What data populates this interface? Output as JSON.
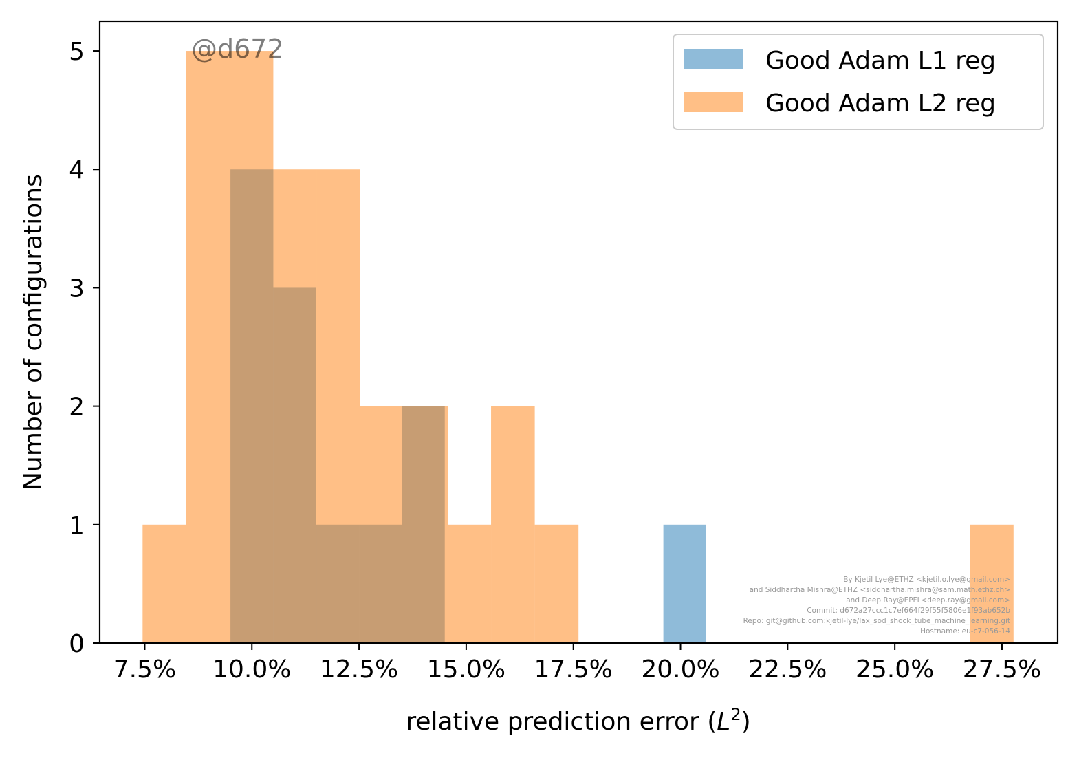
{
  "chart_data": {
    "type": "bar",
    "chart_kind": "overlapping histograms",
    "xlabel": "relative prediction error",
    "xlabel_math": "L",
    "xlabel_math_sup": "2",
    "ylabel": "Number of configurations",
    "xlim": [
      6.45,
      28.8
    ],
    "ylim": [
      0,
      5.25
    ],
    "x_ticks": [
      7.5,
      10.0,
      12.5,
      15.0,
      17.5,
      20.0,
      22.5,
      25.0,
      27.5
    ],
    "x_tick_labels": [
      "7.5%",
      "10.0%",
      "12.5%",
      "15.0%",
      "17.5%",
      "20.0%",
      "22.5%",
      "25.0%",
      "27.5%"
    ],
    "y_ticks": [
      0,
      1,
      2,
      3,
      4,
      5
    ],
    "y_tick_labels": [
      "0",
      "1",
      "2",
      "3",
      "4",
      "5"
    ],
    "grid": false,
    "legend_position": "top-right",
    "series": [
      {
        "name": "Good Adam L1 reg",
        "color": "#1f77b4",
        "alpha": 0.5,
        "bins": [
          {
            "x0": 9.5,
            "x1": 10.5,
            "count": 4
          },
          {
            "x0": 10.5,
            "x1": 11.5,
            "count": 3
          },
          {
            "x0": 11.5,
            "x1": 12.5,
            "count": 1
          },
          {
            "x0": 12.5,
            "x1": 13.5,
            "count": 1
          },
          {
            "x0": 13.5,
            "x1": 14.5,
            "count": 2
          },
          {
            "x0": 19.6,
            "x1": 20.6,
            "count": 1
          }
        ]
      },
      {
        "name": "Good Adam L2 reg",
        "color": "#ff7f0e",
        "alpha": 0.5,
        "bins": [
          {
            "x0": 7.45,
            "x1": 8.47,
            "count": 1
          },
          {
            "x0": 8.47,
            "x1": 9.49,
            "count": 5
          },
          {
            "x0": 9.49,
            "x1": 10.5,
            "count": 5
          },
          {
            "x0": 10.5,
            "x1": 11.52,
            "count": 4
          },
          {
            "x0": 11.52,
            "x1": 12.53,
            "count": 4
          },
          {
            "x0": 12.53,
            "x1": 13.55,
            "count": 2
          },
          {
            "x0": 13.55,
            "x1": 14.57,
            "count": 2
          },
          {
            "x0": 14.57,
            "x1": 15.58,
            "count": 1
          },
          {
            "x0": 15.58,
            "x1": 16.6,
            "count": 2
          },
          {
            "x0": 16.6,
            "x1": 17.62,
            "count": 1
          },
          {
            "x0": 26.75,
            "x1": 27.77,
            "count": 1
          }
        ]
      }
    ]
  },
  "watermark": "@d672",
  "credits": [
    "By Kjetil Lye@ETHZ <kjetil.o.lye@gmail.com>",
    "and Siddhartha Mishra@ETHZ <siddhartha.mishra@sam.math.ethz.ch>",
    "and Deep Ray@EPFL<deep.ray@gmail.com>",
    "Commit: d672a27ccc1c7ef664f29f55f5806e1f93ab652b",
    "Repo: git@github.com:kjetil-lye/lax_sod_shock_tube_machine_learning.git",
    "Hostname: eu-c7-056-14"
  ]
}
